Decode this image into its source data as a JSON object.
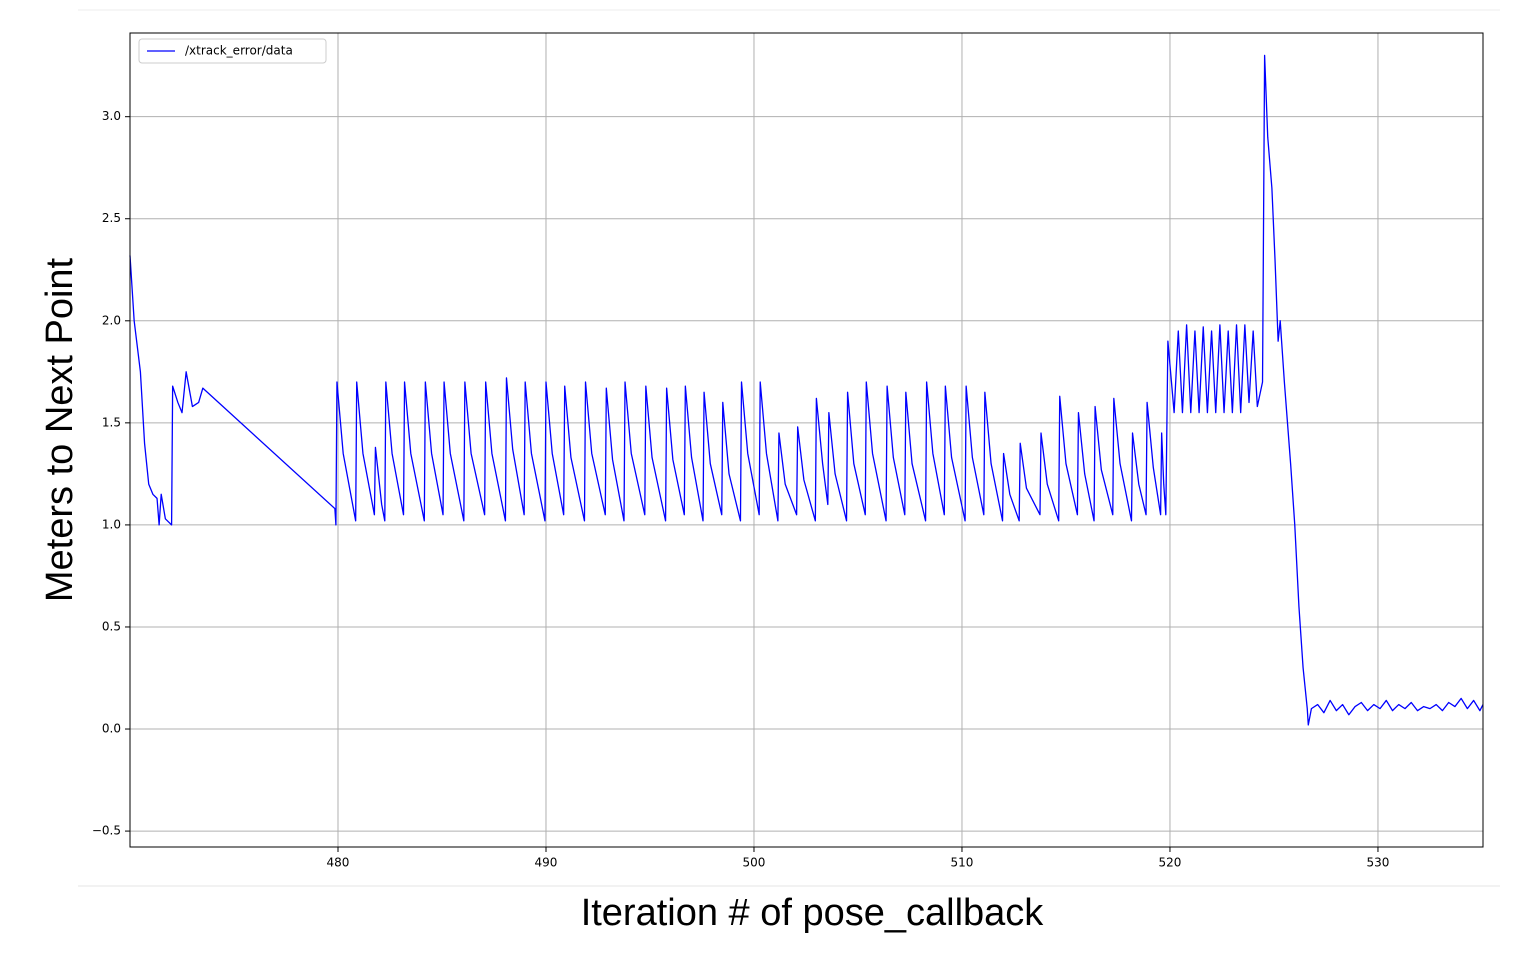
{
  "chart_data": {
    "type": "line",
    "x_label": "Iteration # of pose_callback",
    "y_label": "Meters to Next Point",
    "xlim": [
      470.0,
      535.05
    ],
    "ylim": [
      -0.578,
      3.41
    ],
    "xticks": [
      480,
      490,
      500,
      510,
      520,
      530
    ],
    "yticks": [
      {
        "value": -0.5,
        "label": "−0.5"
      },
      {
        "value": 0,
        "label": "0.0"
      },
      {
        "value": 0.5,
        "label": "0.5"
      },
      {
        "value": 1,
        "label": "1.0"
      },
      {
        "value": 1.5,
        "label": "1.5"
      },
      {
        "value": 2,
        "label": "2.0"
      },
      {
        "value": 2.5,
        "label": "2.5"
      },
      {
        "value": 3,
        "label": "3.0"
      }
    ],
    "grid": true,
    "legend": "upper left",
    "x": [
      470.0,
      470.2,
      470.5,
      470.7,
      470.9,
      471.1,
      471.3,
      471.4,
      471.5,
      471.7,
      472.0,
      472.05,
      472.3,
      472.5,
      472.7,
      473.0,
      473.3,
      473.5,
      479.85,
      479.9,
      479.95,
      480.25,
      480.85,
      480.9,
      481.2,
      481.75,
      481.8,
      482.1,
      482.25,
      482.3,
      482.6,
      483.15,
      483.2,
      483.5,
      484.15,
      484.2,
      484.5,
      485.05,
      485.1,
      485.4,
      486.05,
      486.1,
      486.4,
      487.05,
      487.1,
      487.4,
      488.05,
      488.1,
      488.4,
      488.95,
      489.0,
      489.3,
      489.95,
      490.0,
      490.3,
      490.85,
      490.9,
      491.2,
      491.85,
      491.9,
      492.2,
      492.85,
      492.9,
      493.2,
      493.75,
      493.8,
      494.1,
      494.75,
      494.8,
      495.1,
      495.75,
      495.8,
      496.1,
      496.65,
      496.7,
      497.0,
      497.55,
      497.6,
      497.9,
      498.45,
      498.5,
      498.8,
      499.35,
      499.4,
      499.7,
      500.25,
      500.3,
      500.6,
      501.15,
      501.2,
      501.5,
      502.05,
      502.1,
      502.4,
      502.95,
      503.0,
      503.3,
      503.55,
      503.6,
      503.9,
      504.45,
      504.5,
      504.8,
      505.35,
      505.4,
      505.7,
      506.35,
      506.4,
      506.7,
      507.25,
      507.3,
      507.6,
      508.25,
      508.3,
      508.6,
      509.15,
      509.2,
      509.5,
      510.15,
      510.2,
      510.5,
      511.05,
      511.1,
      511.4,
      511.95,
      512.0,
      512.3,
      512.75,
      512.8,
      513.1,
      513.75,
      513.8,
      514.1,
      514.65,
      514.7,
      515.0,
      515.55,
      515.6,
      515.9,
      516.35,
      516.4,
      516.7,
      517.25,
      517.3,
      517.6,
      518.15,
      518.2,
      518.5,
      518.85,
      518.9,
      519.2,
      519.55,
      519.6,
      519.7,
      519.8,
      519.9,
      520.2,
      520.4,
      520.6,
      520.8,
      521.0,
      521.2,
      521.4,
      521.6,
      521.8,
      522.0,
      522.2,
      522.4,
      522.6,
      522.8,
      523.0,
      523.2,
      523.4,
      523.6,
      523.8,
      524.0,
      524.2,
      524.45,
      524.55,
      524.7,
      524.9,
      525.05,
      525.2,
      525.3,
      525.5,
      525.8,
      526.0,
      526.2,
      526.4,
      526.6,
      526.65,
      526.8,
      527.1,
      527.4,
      527.7,
      528.0,
      528.3,
      528.6,
      528.9,
      529.2,
      529.5,
      529.8,
      530.1,
      530.4,
      530.7,
      531.0,
      531.3,
      531.6,
      531.9,
      532.2,
      532.5,
      532.8,
      533.1,
      533.4,
      533.7,
      534.0,
      534.3,
      534.6,
      534.9,
      535.05
    ],
    "series": [
      {
        "name": "/xtrack_error/data",
        "color": "#0000ff",
        "values": [
          2.32,
          2.0,
          1.75,
          1.4,
          1.2,
          1.15,
          1.13,
          1.0,
          1.15,
          1.03,
          1.0,
          1.68,
          1.6,
          1.55,
          1.75,
          1.58,
          1.6,
          1.67,
          1.08,
          1.0,
          1.7,
          1.35,
          1.02,
          1.7,
          1.35,
          1.05,
          1.38,
          1.1,
          1.02,
          1.7,
          1.35,
          1.05,
          1.7,
          1.35,
          1.02,
          1.7,
          1.35,
          1.05,
          1.7,
          1.35,
          1.02,
          1.7,
          1.35,
          1.05,
          1.7,
          1.35,
          1.02,
          1.72,
          1.37,
          1.05,
          1.7,
          1.35,
          1.02,
          1.7,
          1.35,
          1.05,
          1.68,
          1.33,
          1.02,
          1.7,
          1.35,
          1.05,
          1.67,
          1.32,
          1.02,
          1.7,
          1.35,
          1.05,
          1.68,
          1.33,
          1.02,
          1.67,
          1.32,
          1.05,
          1.68,
          1.33,
          1.02,
          1.65,
          1.3,
          1.05,
          1.6,
          1.25,
          1.02,
          1.7,
          1.35,
          1.05,
          1.7,
          1.35,
          1.02,
          1.45,
          1.2,
          1.05,
          1.48,
          1.22,
          1.02,
          1.62,
          1.3,
          1.1,
          1.55,
          1.25,
          1.02,
          1.65,
          1.3,
          1.05,
          1.7,
          1.35,
          1.02,
          1.68,
          1.33,
          1.05,
          1.65,
          1.3,
          1.02,
          1.7,
          1.35,
          1.05,
          1.68,
          1.33,
          1.02,
          1.68,
          1.33,
          1.05,
          1.65,
          1.3,
          1.02,
          1.35,
          1.15,
          1.02,
          1.4,
          1.18,
          1.05,
          1.45,
          1.2,
          1.02,
          1.63,
          1.3,
          1.05,
          1.55,
          1.25,
          1.02,
          1.58,
          1.27,
          1.05,
          1.62,
          1.3,
          1.02,
          1.45,
          1.2,
          1.05,
          1.6,
          1.28,
          1.05,
          1.45,
          1.2,
          1.05,
          1.9,
          1.55,
          1.95,
          1.55,
          1.98,
          1.55,
          1.95,
          1.55,
          1.97,
          1.55,
          1.95,
          1.55,
          1.98,
          1.55,
          1.95,
          1.55,
          1.98,
          1.55,
          1.98,
          1.6,
          1.95,
          1.58,
          1.7,
          3.3,
          2.9,
          2.65,
          2.3,
          1.9,
          2.0,
          1.7,
          1.3,
          1.0,
          0.6,
          0.3,
          0.1,
          0.02,
          0.1,
          0.12,
          0.08,
          0.14,
          0.09,
          0.12,
          0.07,
          0.11,
          0.13,
          0.09,
          0.12,
          0.1,
          0.14,
          0.09,
          0.12,
          0.1,
          0.13,
          0.09,
          0.11,
          0.1,
          0.12,
          0.09,
          0.13,
          0.11,
          0.15,
          0.1,
          0.14,
          0.09,
          0.12
        ]
      }
    ]
  }
}
